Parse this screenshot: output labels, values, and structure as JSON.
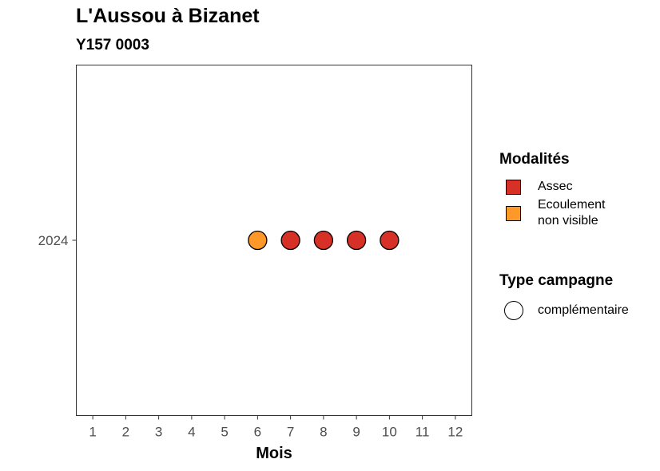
{
  "title": "L'Aussou à Bizanet",
  "subtitle": "Y157 0003",
  "chart_data": {
    "type": "scatter",
    "xlabel": "Mois",
    "ylabel": "",
    "x_ticks": [
      1,
      2,
      3,
      4,
      5,
      6,
      7,
      8,
      9,
      10,
      11,
      12
    ],
    "xlim": [
      0.5,
      12.5
    ],
    "y_categories": [
      "2024"
    ],
    "points": [
      {
        "month": 6,
        "year": "2024",
        "modalite": "Ecoulement non visible",
        "campagne": "complémentaire"
      },
      {
        "month": 7,
        "year": "2024",
        "modalite": "Assec",
        "campagne": "complémentaire"
      },
      {
        "month": 8,
        "year": "2024",
        "modalite": "Assec",
        "campagne": "complémentaire"
      },
      {
        "month": 9,
        "year": "2024",
        "modalite": "Assec",
        "campagne": "complémentaire"
      },
      {
        "month": 10,
        "year": "2024",
        "modalite": "Assec",
        "campagne": "complémentaire"
      }
    ],
    "colors": {
      "Assec": "#d73027",
      "Ecoulement non visible": "#fe9929"
    },
    "grid": false
  },
  "legend": {
    "modalites_title": "Modalités",
    "modalites": [
      {
        "label_line1": "Assec",
        "label_line2": "",
        "color": "#d73027"
      },
      {
        "label_line1": "Ecoulement",
        "label_line2": "non visible",
        "color": "#fe9929"
      }
    ],
    "campagne_title": "Type campagne",
    "campagne": [
      {
        "label": "complémentaire"
      }
    ]
  }
}
